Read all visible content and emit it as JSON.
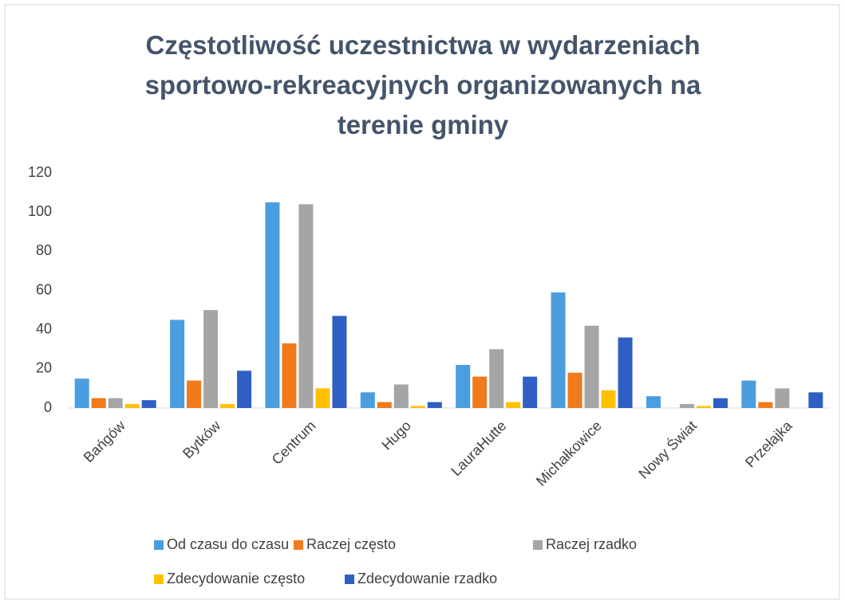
{
  "chart_data": {
    "type": "bar",
    "title": "Częstotliwość uczestnictwa w wydarzeniach sportowo-rekreacyjnych organizowanych na terenie gminy",
    "categories": [
      "Bańgów",
      "Bytków",
      "Centrum",
      "Hugo",
      "LauraHutte",
      "Michałkowice",
      "Nowy Świat",
      "Przełajka"
    ],
    "series": [
      {
        "name": "Od czasu do czasu",
        "color": "#4a9ee0",
        "values": [
          15,
          45,
          105,
          8,
          22,
          59,
          6,
          14
        ]
      },
      {
        "name": "Raczej często",
        "color": "#f07a1c",
        "values": [
          5,
          14,
          33,
          3,
          16,
          18,
          0,
          3
        ]
      },
      {
        "name": "Raczej rzadko",
        "color": "#a5a5a5",
        "values": [
          5,
          50,
          104,
          12,
          30,
          42,
          2,
          10
        ]
      },
      {
        "name": "Zdecydowanie często",
        "color": "#ffc000",
        "values": [
          2,
          2,
          10,
          1,
          3,
          9,
          1,
          0
        ]
      },
      {
        "name": "Zdecydowanie rzadko",
        "color": "#2f5fc4",
        "values": [
          4,
          19,
          47,
          3,
          16,
          36,
          5,
          8
        ]
      }
    ],
    "ylim": [
      0,
      120
    ],
    "yticks": [
      0,
      20,
      40,
      60,
      80,
      100,
      120
    ],
    "grid": false,
    "legend": "bottom"
  }
}
